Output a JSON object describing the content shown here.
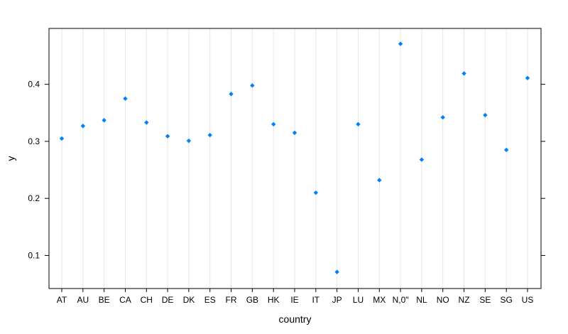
{
  "chart_data": {
    "type": "scatter",
    "xlabel": "country",
    "ylabel": "y",
    "categories": [
      "AT",
      "AU",
      "BE",
      "CA",
      "CH",
      "DE",
      "DK",
      "ES",
      "FR",
      "GB",
      "HK",
      "IE",
      "IT",
      "JP",
      "LU",
      "MX",
      "N,0\"",
      "NL",
      "NO",
      "NZ",
      "SE",
      "SG",
      "US"
    ],
    "values": [
      0.305,
      0.327,
      0.337,
      0.375,
      0.333,
      0.309,
      0.301,
      0.311,
      0.383,
      0.398,
      0.33,
      0.315,
      0.21,
      0.071,
      0.33,
      0.232,
      0.471,
      0.268,
      0.342,
      0.419,
      0.346,
      0.285,
      0.411
    ],
    "ylim": [
      0.042,
      0.498
    ],
    "yticks": [
      0.1,
      0.2,
      0.3,
      0.4
    ],
    "ytick_labels": [
      "0.1",
      "0.2",
      "0.3",
      "0.4"
    ],
    "grid": "vertical",
    "colors": {
      "point": "#0080ff",
      "grid": "#e6e6e6",
      "frame": "#000000"
    }
  }
}
